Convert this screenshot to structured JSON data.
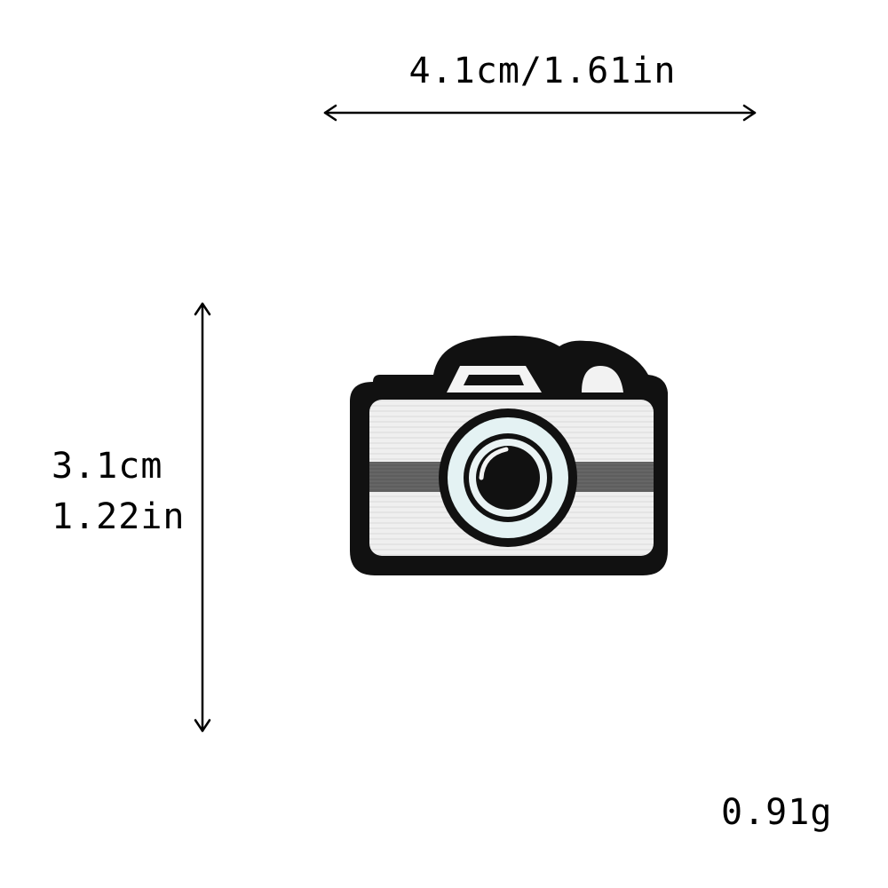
{
  "dimensions": {
    "width": "4.1cm/1.61in",
    "height_cm": "3.1cm",
    "height_in": "1.22in"
  },
  "weight": "0.91g",
  "product": {
    "icon": "camera-patch",
    "colors": {
      "border": "#111111",
      "body": "#f2f2f2",
      "stripe": "#6e6e6e",
      "lens_ring": "#dfeef0",
      "lens_center": "#111111"
    }
  }
}
